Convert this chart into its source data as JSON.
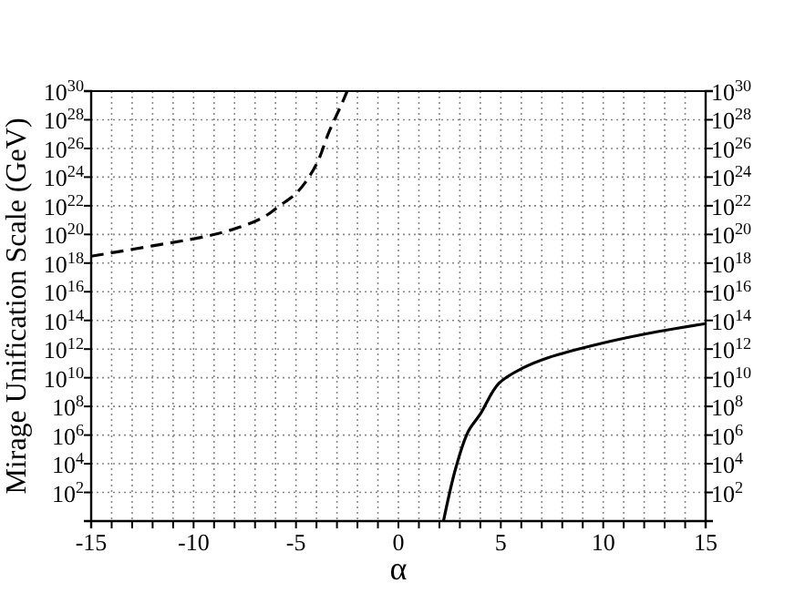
{
  "chart_data": {
    "type": "line",
    "xlabel": "α",
    "ylabel": "Mirage Unification Scale (GeV)",
    "log": "y",
    "grid": true,
    "marker": "none",
    "xlim": [
      -15,
      15
    ],
    "xticks": [
      -15,
      {
        "value": -14,
        "label": null
      },
      {
        "value": -13,
        "label": null
      },
      {
        "value": -12,
        "label": null
      },
      {
        "value": -11,
        "label": null
      },
      -10,
      {
        "value": -9,
        "label": null
      },
      {
        "value": -8,
        "label": null
      },
      {
        "value": -7,
        "label": null
      },
      {
        "value": -6,
        "label": null
      },
      -5,
      {
        "value": -4,
        "label": null
      },
      {
        "value": -3,
        "label": null
      },
      {
        "value": -2,
        "label": null
      },
      {
        "value": -1,
        "label": null
      },
      0,
      {
        "value": 1,
        "label": null
      },
      {
        "value": 2,
        "label": null
      },
      {
        "value": 3,
        "label": null
      },
      {
        "value": 4,
        "label": null
      },
      5,
      {
        "value": 6,
        "label": null
      },
      {
        "value": 7,
        "label": null
      },
      {
        "value": 8,
        "label": null
      },
      {
        "value": 9,
        "label": null
      },
      10,
      {
        "value": 11,
        "label": null
      },
      {
        "value": 12,
        "label": null
      },
      {
        "value": 13,
        "label": null
      },
      {
        "value": 14,
        "label": null
      },
      15
    ],
    "ylim": [
      1,
      1e+30
    ],
    "yticks": [
      {
        "value": 1,
        "label": null
      },
      {
        "value": 100.0,
        "label": "10$^{2}$"
      },
      {
        "value": 10000.0,
        "label": "10$^{4}$"
      },
      {
        "value": 1000000.0,
        "label": "10$^{6}$"
      },
      {
        "value": 100000000.0,
        "label": "10$^{8}$"
      },
      {
        "value": 10000000000.0,
        "label": "10$^{10}$"
      },
      {
        "value": 1000000000000.0,
        "label": "10$^{12}$"
      },
      {
        "value": 100000000000000.0,
        "label": "10$^{14}$"
      },
      {
        "value": 1e+16,
        "label": "10$^{16}$"
      },
      {
        "value": 1e+18,
        "label": "10$^{18}$"
      },
      {
        "value": 1e+20,
        "label": "10$^{20}$"
      },
      {
        "value": 1e+22,
        "label": "10$^{22}$"
      },
      {
        "value": 1e+24,
        "label": "10$^{24}$"
      },
      {
        "value": 1e+26,
        "label": "10$^{26}$"
      },
      {
        "value": 1e+28,
        "label": "10$^{28}$"
      },
      {
        "value": 1e+30,
        "label": "10$^{30}$"
      }
    ],
    "series": [
      {
        "color": "#000000",
        "line_style": "dashed",
        "x": [
          -15,
          -12,
          -9.7,
          -8.2,
          -6.7,
          -5.8,
          -4.9,
          -4,
          -3.4,
          -2.8,
          -2.5
        ],
        "values": [
          3e+18,
          1.6e+19,
          6e+19,
          2e+20,
          1.3e+21,
          1e+22,
          1e+23,
          8e+24,
          1.3e+27,
          1e+29,
          1e+30
        ]
      },
      {
        "color": "#000000",
        "line_style": "solid",
        "x": [
          2.2,
          2.8,
          3.4,
          4,
          4.9,
          6.1,
          7.3,
          9.9,
          12.6,
          15
        ],
        "values": [
          1,
          5000.0,
          1700000.0,
          30000000.0,
          4000000000.0,
          50000000000.0,
          250000000000.0,
          2500000000000.0,
          16000000000000.0,
          60000000000000.0
        ]
      }
    ]
  }
}
